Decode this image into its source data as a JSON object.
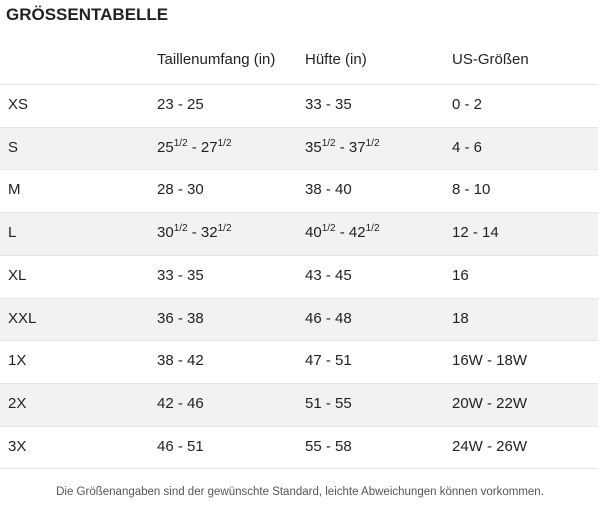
{
  "header": {
    "title": "GRÖSSENTABELLE"
  },
  "table": {
    "columns": [
      "Taillenumfang (in)",
      "Hüfte (in)",
      "US-Größen"
    ],
    "rows": [
      [
        "XS",
        [
          "23 - 25"
        ],
        [
          "33 - 35"
        ],
        [
          "0 - 2"
        ]
      ],
      [
        "S",
        [
          "25",
          "1/2",
          " - 27",
          "1/2"
        ],
        [
          "35",
          "1/2",
          " - 37",
          "1/2"
        ],
        [
          "4 - 6"
        ]
      ],
      [
        "M",
        [
          "28 - 30"
        ],
        [
          "38 - 40"
        ],
        [
          "8 - 10"
        ]
      ],
      [
        "L",
        [
          "30",
          "1/2",
          " - 32",
          "1/2"
        ],
        [
          "40",
          "1/2",
          " - 42",
          "1/2"
        ],
        [
          "12 - 14"
        ]
      ],
      [
        "XL",
        [
          "33 - 35"
        ],
        [
          "43 - 45"
        ],
        [
          "16"
        ]
      ],
      [
        "XXL",
        [
          "36 - 38"
        ],
        [
          "46 - 48"
        ],
        [
          "18"
        ]
      ],
      [
        "1X",
        [
          "38 - 42"
        ],
        [
          "47 - 51"
        ],
        [
          "16W - 18W"
        ]
      ],
      [
        "2X",
        [
          "42 - 46"
        ],
        [
          "51 - 55"
        ],
        [
          "20W - 22W"
        ]
      ],
      [
        "3X",
        [
          "46 - 51"
        ],
        [
          "55 - 58"
        ],
        [
          "24W - 26W"
        ]
      ]
    ]
  },
  "footer": {
    "note": "Die Größenangaben sind der gewünschte Standard, leichte Abweichungen können vorkommen."
  }
}
